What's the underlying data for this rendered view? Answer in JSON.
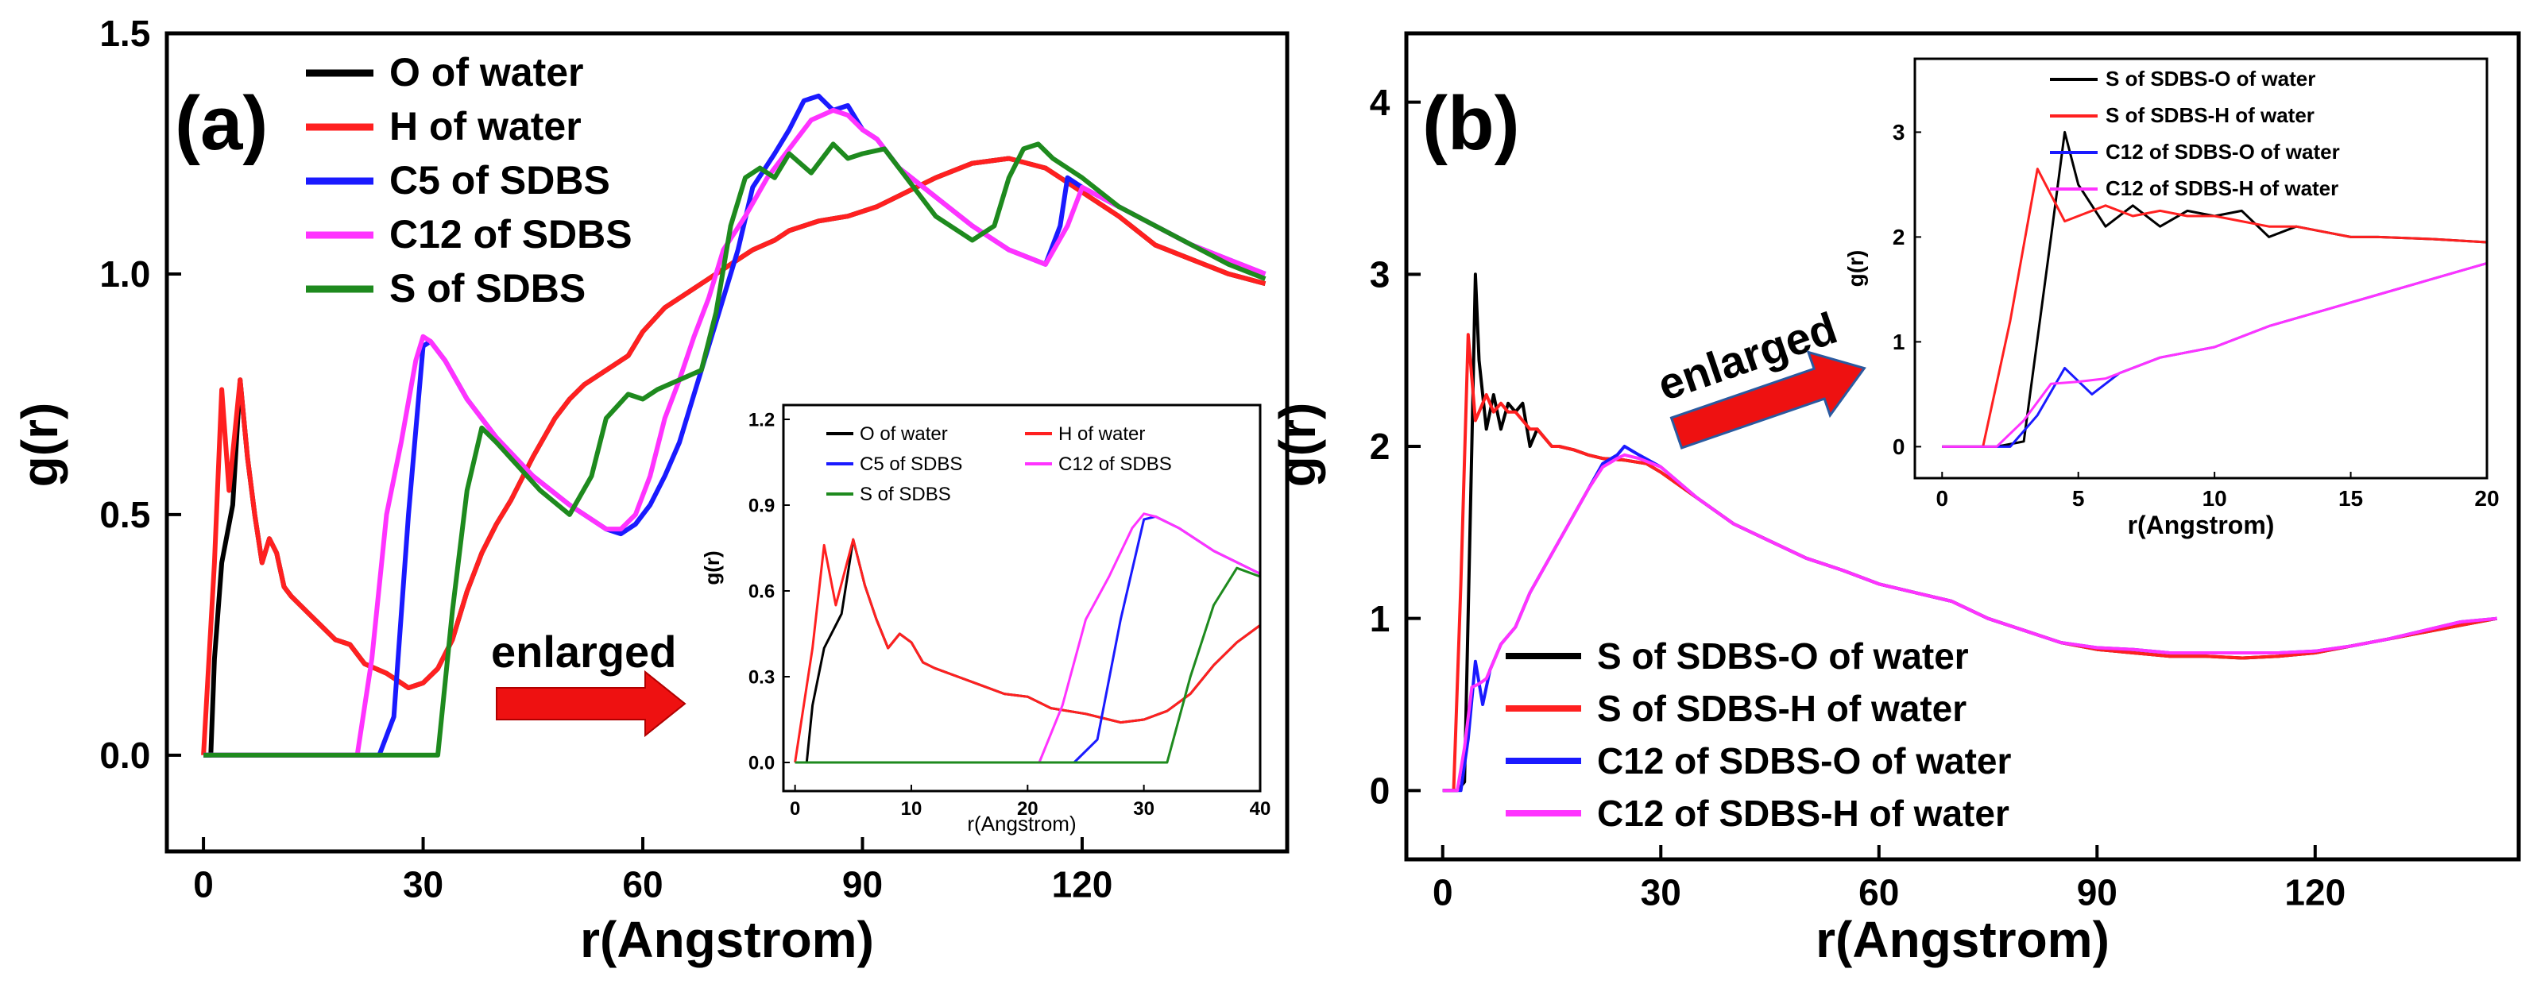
{
  "chart_data": [
    {
      "panel_label": "(a)",
      "type": "line",
      "xlabel": "r(Angstrom)",
      "ylabel": "g(r)",
      "xlim": [
        -5,
        148
      ],
      "ylim": [
        -0.2,
        1.5
      ],
      "xticks": [
        0,
        30,
        60,
        90,
        120
      ],
      "yticks": [
        0.0,
        0.5,
        1.0,
        1.5
      ],
      "ytick_labels": [
        "0.0",
        "0.5",
        "1.0",
        "1.5"
      ],
      "legend_position": "top-left",
      "annotation": "enlarged",
      "series": [
        {
          "name": "O of water",
          "color": "#000000",
          "x": [
            0,
            1,
            1.5,
            2.5,
            4,
            5,
            6,
            7,
            8,
            9,
            10,
            11,
            12,
            14,
            16,
            18,
            20,
            22,
            25,
            28,
            30,
            32,
            34,
            36,
            38,
            40,
            42,
            45,
            48,
            50,
            52,
            55,
            58,
            60,
            63,
            66,
            69,
            72,
            75,
            78,
            80,
            84,
            88,
            92,
            96,
            100,
            105,
            110,
            115,
            120,
            125,
            130,
            135,
            140,
            145
          ],
          "y": [
            0,
            0,
            0.2,
            0.4,
            0.52,
            0.78,
            0.62,
            0.5,
            0.4,
            0.45,
            0.42,
            0.35,
            0.33,
            0.3,
            0.27,
            0.24,
            0.23,
            0.19,
            0.17,
            0.14,
            0.15,
            0.18,
            0.24,
            0.34,
            0.42,
            0.48,
            0.53,
            0.62,
            0.7,
            0.74,
            0.77,
            0.8,
            0.83,
            0.88,
            0.93,
            0.96,
            0.99,
            1.02,
            1.05,
            1.07,
            1.09,
            1.11,
            1.12,
            1.14,
            1.17,
            1.2,
            1.23,
            1.24,
            1.22,
            1.17,
            1.12,
            1.06,
            1.03,
            1.0,
            0.98
          ]
        },
        {
          "name": "H of water",
          "color": "#ff2020",
          "x": [
            0,
            1.5,
            2.5,
            3.5,
            5,
            6,
            7,
            8,
            9,
            10,
            11,
            12,
            14,
            16,
            18,
            20,
            22,
            25,
            28,
            30,
            32,
            34,
            36,
            38,
            40,
            42,
            45,
            48,
            50,
            52,
            55,
            58,
            60,
            63,
            66,
            69,
            72,
            75,
            78,
            80,
            84,
            88,
            92,
            96,
            100,
            105,
            110,
            115,
            120,
            125,
            130,
            135,
            140,
            145
          ],
          "y": [
            0,
            0.4,
            0.76,
            0.55,
            0.78,
            0.62,
            0.5,
            0.4,
            0.45,
            0.42,
            0.35,
            0.33,
            0.3,
            0.27,
            0.24,
            0.23,
            0.19,
            0.17,
            0.14,
            0.15,
            0.18,
            0.24,
            0.34,
            0.42,
            0.48,
            0.53,
            0.62,
            0.7,
            0.74,
            0.77,
            0.8,
            0.83,
            0.88,
            0.93,
            0.96,
            0.99,
            1.02,
            1.05,
            1.07,
            1.09,
            1.11,
            1.12,
            1.14,
            1.17,
            1.2,
            1.23,
            1.24,
            1.22,
            1.17,
            1.12,
            1.06,
            1.03,
            1.0,
            0.98
          ]
        },
        {
          "name": "C5 of SDBS",
          "color": "#1a1aff",
          "x": [
            0,
            24,
            26,
            28,
            30,
            31,
            33,
            36,
            40,
            45,
            50,
            55,
            57,
            59,
            61,
            63,
            65,
            67,
            69,
            71,
            73,
            75,
            78,
            80,
            82,
            84,
            86,
            88,
            90,
            92,
            95,
            100,
            105,
            110,
            115,
            117,
            118,
            120,
            125,
            130,
            135,
            140,
            145
          ],
          "y": [
            0,
            0,
            0.08,
            0.5,
            0.85,
            0.86,
            0.82,
            0.74,
            0.66,
            0.58,
            0.52,
            0.47,
            0.46,
            0.48,
            0.52,
            0.58,
            0.65,
            0.75,
            0.85,
            0.95,
            1.05,
            1.18,
            1.25,
            1.3,
            1.36,
            1.37,
            1.34,
            1.35,
            1.3,
            1.28,
            1.22,
            1.16,
            1.1,
            1.05,
            1.02,
            1.1,
            1.2,
            1.18,
            1.14,
            1.1,
            1.06,
            1.03,
            1.0
          ]
        },
        {
          "name": "C12 of SDBS",
          "color": "#ff33ff",
          "x": [
            0,
            21,
            23,
            25,
            27,
            29,
            30,
            31,
            33,
            36,
            40,
            45,
            50,
            55,
            57,
            59,
            61,
            63,
            65,
            67,
            69,
            71,
            74,
            77,
            80,
            83,
            86,
            88,
            90,
            92,
            95,
            100,
            105,
            110,
            115,
            118,
            120,
            125,
            130,
            135,
            140,
            145
          ],
          "y": [
            0,
            0,
            0.2,
            0.5,
            0.65,
            0.82,
            0.87,
            0.86,
            0.82,
            0.74,
            0.66,
            0.58,
            0.52,
            0.47,
            0.47,
            0.5,
            0.58,
            0.7,
            0.78,
            0.87,
            0.95,
            1.05,
            1.12,
            1.2,
            1.26,
            1.32,
            1.34,
            1.33,
            1.3,
            1.28,
            1.22,
            1.16,
            1.1,
            1.05,
            1.02,
            1.1,
            1.18,
            1.14,
            1.1,
            1.06,
            1.03,
            1.0
          ]
        },
        {
          "name": "S of SDBS",
          "color": "#1e8a1e",
          "x": [
            0,
            32,
            34,
            36,
            38,
            40,
            43,
            46,
            50,
            53,
            55,
            58,
            60,
            62,
            65,
            68,
            70,
            72,
            74,
            76,
            78,
            80,
            83,
            86,
            88,
            90,
            93,
            96,
            100,
            105,
            108,
            110,
            112,
            114,
            116,
            120,
            125,
            130,
            135,
            140,
            145
          ],
          "y": [
            0,
            0,
            0.3,
            0.55,
            0.68,
            0.65,
            0.6,
            0.55,
            0.5,
            0.58,
            0.7,
            0.75,
            0.74,
            0.76,
            0.78,
            0.8,
            0.92,
            1.1,
            1.2,
            1.22,
            1.2,
            1.25,
            1.21,
            1.27,
            1.24,
            1.25,
            1.26,
            1.2,
            1.12,
            1.07,
            1.1,
            1.2,
            1.26,
            1.27,
            1.24,
            1.2,
            1.14,
            1.1,
            1.06,
            1.02,
            0.99
          ]
        }
      ],
      "inset": {
        "type": "line",
        "xlabel": "r(Angstrom)",
        "ylabel": "g(r)",
        "xlim": [
          -1,
          40
        ],
        "ylim": [
          -0.1,
          1.25
        ],
        "xticks": [
          0,
          10,
          20,
          30,
          40
        ],
        "yticks": [
          0.0,
          0.3,
          0.6,
          0.9,
          1.2
        ],
        "ytick_labels": [
          "0.0",
          "0.3",
          "0.6",
          "0.9",
          "1.2"
        ],
        "legend": [
          "O of water",
          "H of water",
          "C5 of SDBS",
          "C12 of SDBS",
          "S of SDBS"
        ]
      }
    },
    {
      "panel_label": "(b)",
      "type": "line",
      "xlabel": "r(Angstrom)",
      "ylabel": "g(r)",
      "xlim": [
        -5,
        148
      ],
      "ylim": [
        -0.4,
        4.4
      ],
      "xticks": [
        0,
        30,
        60,
        90,
        120
      ],
      "yticks": [
        0,
        1,
        2,
        3,
        4
      ],
      "ytick_labels": [
        "0",
        "1",
        "2",
        "3",
        "4"
      ],
      "legend_position": "bottom-left",
      "annotation": "enlarged",
      "series": [
        {
          "name": "S of SDBS-O of water",
          "color": "#000000",
          "x": [
            0,
            2,
            3,
            4,
            4.5,
            5,
            6,
            7,
            8,
            9,
            10,
            11,
            12,
            13,
            14,
            15,
            16,
            18,
            20,
            22,
            25,
            28,
            30,
            35,
            40,
            45,
            50,
            55,
            60,
            65,
            70,
            75,
            80,
            85,
            90,
            95,
            100,
            105,
            110,
            115,
            120,
            125,
            130,
            135,
            140,
            145
          ],
          "y": [
            0,
            0,
            0.05,
            2.0,
            3.0,
            2.5,
            2.1,
            2.3,
            2.1,
            2.25,
            2.2,
            2.25,
            2.0,
            2.1,
            2.05,
            2.0,
            2.0,
            1.98,
            1.95,
            1.93,
            1.92,
            1.9,
            1.85,
            1.7,
            1.55,
            1.45,
            1.35,
            1.28,
            1.2,
            1.15,
            1.1,
            1.0,
            0.93,
            0.86,
            0.82,
            0.8,
            0.78,
            0.78,
            0.77,
            0.78,
            0.8,
            0.84,
            0.88,
            0.92,
            0.96,
            1.0
          ]
        },
        {
          "name": "S of SDBS-H of water",
          "color": "#ff2020",
          "x": [
            0,
            1.5,
            2.5,
            3.5,
            4.5,
            5,
            6,
            7,
            8,
            9,
            10,
            11,
            12,
            13,
            14,
            15,
            16,
            18,
            20,
            22,
            25,
            28,
            30,
            35,
            40,
            45,
            50,
            55,
            60,
            65,
            70,
            75,
            80,
            85,
            90,
            95,
            100,
            105,
            110,
            115,
            120,
            125,
            130,
            135,
            140,
            145
          ],
          "y": [
            0,
            0,
            1.2,
            2.65,
            2.15,
            2.2,
            2.3,
            2.2,
            2.25,
            2.2,
            2.2,
            2.15,
            2.1,
            2.1,
            2.05,
            2.0,
            2.0,
            1.98,
            1.95,
            1.93,
            1.92,
            1.9,
            1.85,
            1.7,
            1.55,
            1.45,
            1.35,
            1.28,
            1.2,
            1.15,
            1.1,
            1.0,
            0.93,
            0.86,
            0.82,
            0.8,
            0.78,
            0.78,
            0.77,
            0.78,
            0.8,
            0.84,
            0.88,
            0.92,
            0.96,
            1.0
          ]
        },
        {
          "name": "C12 of SDBS-O of water",
          "color": "#1a1aff",
          "x": [
            0,
            2.5,
            3.5,
            4.5,
            5.5,
            6.5,
            8,
            10,
            12,
            14,
            16,
            18,
            20,
            22,
            24,
            25,
            27,
            30,
            35,
            40,
            45,
            50,
            55,
            60,
            65,
            70,
            75,
            80,
            85,
            90,
            95,
            100,
            105,
            110,
            115,
            120,
            125,
            130,
            135,
            140,
            145
          ],
          "y": [
            0,
            0,
            0.3,
            0.75,
            0.5,
            0.7,
            0.85,
            0.95,
            1.15,
            1.3,
            1.45,
            1.6,
            1.75,
            1.9,
            1.95,
            2.0,
            1.95,
            1.88,
            1.7,
            1.55,
            1.45,
            1.35,
            1.28,
            1.2,
            1.15,
            1.1,
            1.0,
            0.93,
            0.86,
            0.83,
            0.82,
            0.8,
            0.8,
            0.8,
            0.8,
            0.81,
            0.84,
            0.88,
            0.93,
            0.98,
            1.0
          ]
        },
        {
          "name": "C12 of SDBS-H of water",
          "color": "#ff33ff",
          "x": [
            0,
            2,
            3,
            4,
            5,
            6,
            8,
            10,
            12,
            14,
            16,
            18,
            20,
            22,
            24,
            25,
            27,
            30,
            35,
            40,
            45,
            50,
            55,
            60,
            65,
            70,
            75,
            80,
            85,
            90,
            95,
            100,
            105,
            110,
            115,
            120,
            125,
            130,
            135,
            140,
            145
          ],
          "y": [
            0,
            0,
            0.25,
            0.6,
            0.62,
            0.65,
            0.85,
            0.95,
            1.15,
            1.3,
            1.45,
            1.6,
            1.75,
            1.88,
            1.93,
            1.95,
            1.93,
            1.88,
            1.7,
            1.55,
            1.45,
            1.35,
            1.28,
            1.2,
            1.15,
            1.1,
            1.0,
            0.93,
            0.86,
            0.83,
            0.82,
            0.8,
            0.8,
            0.8,
            0.8,
            0.81,
            0.84,
            0.88,
            0.93,
            0.98,
            1.0
          ]
        }
      ],
      "inset": {
        "type": "line",
        "xlabel": "r(Angstrom)",
        "ylabel": "g(r)",
        "xlim": [
          -1,
          20
        ],
        "ylim": [
          -0.3,
          3.7
        ],
        "xticks": [
          0,
          5,
          10,
          15,
          20
        ],
        "yticks": [
          0,
          1,
          2,
          3
        ],
        "ytick_labels": [
          "0",
          "1",
          "2",
          "3"
        ],
        "legend": [
          "S of SDBS-O of water",
          "S of SDBS-H of water",
          "C12 of SDBS-O of water",
          "C12 of SDBS-H of water"
        ]
      }
    }
  ]
}
